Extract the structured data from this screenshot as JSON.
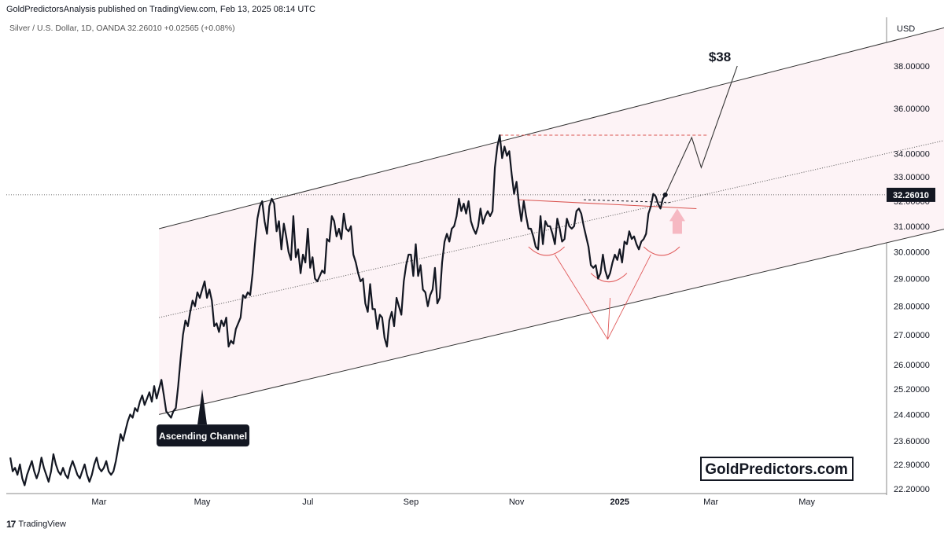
{
  "header": {
    "published": "GoldPredictorsAnalysis published on TradingView.com, Feb 13, 2025 08:14 UTC",
    "symbol": "Silver / U.S. Dollar, 1D, OANDA  32.26010  +0.02565 (+0.08%)"
  },
  "footer": {
    "brand": "TradingView",
    "brand_icon": "tradingview-logo-icon"
  },
  "chart_data": {
    "type": "line",
    "currency": "USD",
    "scale": "log",
    "ylim": [
      22.2,
      40.5
    ],
    "y_ticks": [
      "38.00000",
      "36.00000",
      "34.00000",
      "33.00000",
      "32.00000",
      "31.00000",
      "30.00000",
      "29.00000",
      "28.00000",
      "27.00000",
      "26.00000",
      "25.20000",
      "24.40000",
      "23.60000",
      "22.90000",
      "22.20000"
    ],
    "x_ticks": [
      "Mar",
      "May",
      "Jul",
      "Sep",
      "Nov",
      "2025",
      "Mar",
      "May"
    ],
    "last_price_label": "32.26010",
    "last_price": 32.2601,
    "series": [
      {
        "values": [
          [
            1,
            23.1
          ],
          [
            2,
            22.7
          ],
          [
            3,
            22.8
          ],
          [
            4,
            22.6
          ],
          [
            5,
            22.9
          ],
          [
            6,
            22.5
          ],
          [
            7,
            22.3
          ],
          [
            8,
            22.6
          ],
          [
            9,
            22.8
          ],
          [
            10,
            23.0
          ],
          [
            11,
            22.7
          ],
          [
            12,
            22.5
          ],
          [
            13,
            22.7
          ],
          [
            14,
            23.1
          ],
          [
            15,
            22.8
          ],
          [
            16,
            22.6
          ],
          [
            17,
            22.4
          ],
          [
            18,
            22.7
          ],
          [
            19,
            23.2
          ],
          [
            20,
            22.9
          ],
          [
            21,
            22.7
          ],
          [
            22,
            22.6
          ],
          [
            23,
            22.8
          ],
          [
            24,
            22.6
          ],
          [
            25,
            22.5
          ],
          [
            26,
            22.8
          ],
          [
            27,
            23.0
          ],
          [
            28,
            22.8
          ],
          [
            29,
            22.6
          ],
          [
            30,
            22.5
          ],
          [
            31,
            22.7
          ],
          [
            32,
            22.9
          ],
          [
            33,
            22.6
          ],
          [
            34,
            22.4
          ],
          [
            35,
            22.6
          ],
          [
            36,
            22.9
          ],
          [
            37,
            23.1
          ],
          [
            38,
            22.8
          ],
          [
            39,
            22.7
          ],
          [
            40,
            22.8
          ],
          [
            41,
            23.0
          ],
          [
            42,
            22.7
          ],
          [
            43,
            22.6
          ],
          [
            44,
            22.7
          ],
          [
            45,
            23.0
          ],
          [
            46,
            23.4
          ],
          [
            47,
            23.8
          ],
          [
            48,
            23.6
          ],
          [
            49,
            23.9
          ],
          [
            50,
            24.2
          ],
          [
            51,
            24.4
          ],
          [
            52,
            24.3
          ],
          [
            53,
            24.6
          ],
          [
            54,
            24.5
          ],
          [
            55,
            24.8
          ],
          [
            56,
            25.0
          ],
          [
            57,
            24.7
          ],
          [
            58,
            24.9
          ],
          [
            59,
            25.1
          ],
          [
            60,
            24.8
          ],
          [
            61,
            25.3
          ],
          [
            62,
            24.9
          ],
          [
            63,
            25.2
          ],
          [
            64,
            25.5
          ],
          [
            65,
            25.0
          ],
          [
            66,
            24.5
          ],
          [
            67,
            24.4
          ],
          [
            68,
            24.3
          ],
          [
            69,
            24.5
          ],
          [
            70,
            24.6
          ],
          [
            71,
            25.3
          ],
          [
            72,
            26.2
          ],
          [
            73,
            27.0
          ],
          [
            74,
            27.5
          ],
          [
            75,
            27.3
          ],
          [
            76,
            27.8
          ],
          [
            77,
            28.2
          ],
          [
            78,
            28.0
          ],
          [
            79,
            28.5
          ],
          [
            80,
            28.3
          ],
          [
            81,
            28.6
          ],
          [
            82,
            28.9
          ],
          [
            83,
            28.3
          ],
          [
            84,
            28.6
          ],
          [
            85,
            28.2
          ],
          [
            86,
            27.3
          ],
          [
            87,
            27.4
          ],
          [
            88,
            27.1
          ],
          [
            89,
            27.5
          ],
          [
            90,
            27.3
          ],
          [
            91,
            27.6
          ],
          [
            92,
            26.6
          ],
          [
            93,
            26.8
          ],
          [
            94,
            26.7
          ],
          [
            95,
            27.2
          ],
          [
            96,
            27.4
          ],
          [
            97,
            27.6
          ],
          [
            98,
            28.4
          ],
          [
            99,
            28.3
          ],
          [
            100,
            28.5
          ],
          [
            101,
            28.4
          ],
          [
            102,
            29.2
          ],
          [
            103,
            30.3
          ],
          [
            104,
            31.3
          ],
          [
            105,
            31.8
          ],
          [
            106,
            32.0
          ],
          [
            107,
            31.2
          ],
          [
            108,
            30.7
          ],
          [
            109,
            31.8
          ],
          [
            110,
            32.1
          ],
          [
            111,
            31.9
          ],
          [
            112,
            30.8
          ],
          [
            113,
            31.2
          ],
          [
            114,
            30.1
          ],
          [
            115,
            31.1
          ],
          [
            116,
            30.6
          ],
          [
            117,
            30.0
          ],
          [
            118,
            29.7
          ],
          [
            119,
            31.4
          ],
          [
            120,
            29.8
          ],
          [
            121,
            30.1
          ],
          [
            122,
            29.2
          ],
          [
            123,
            29.9
          ],
          [
            124,
            29.6
          ],
          [
            125,
            30.9
          ],
          [
            126,
            29.4
          ],
          [
            127,
            29.8
          ],
          [
            128,
            29.0
          ],
          [
            129,
            28.9
          ],
          [
            130,
            29.1
          ],
          [
            131,
            29.3
          ],
          [
            132,
            29.2
          ],
          [
            133,
            30.5
          ],
          [
            134,
            30.4
          ],
          [
            135,
            31.4
          ],
          [
            136,
            31.2
          ],
          [
            137,
            30.6
          ],
          [
            138,
            30.9
          ],
          [
            139,
            30.5
          ],
          [
            140,
            31.5
          ],
          [
            141,
            30.9
          ],
          [
            142,
            30.8
          ],
          [
            143,
            31.0
          ],
          [
            144,
            29.9
          ],
          [
            145,
            29.6
          ],
          [
            146,
            29.2
          ],
          [
            147,
            28.9
          ],
          [
            148,
            29.0
          ],
          [
            149,
            28.1
          ],
          [
            150,
            27.8
          ],
          [
            151,
            28.8
          ],
          [
            152,
            27.9
          ],
          [
            153,
            27.9
          ],
          [
            154,
            27.2
          ],
          [
            155,
            27.7
          ],
          [
            156,
            27.6
          ],
          [
            157,
            26.9
          ],
          [
            158,
            26.6
          ],
          [
            159,
            27.5
          ],
          [
            160,
            27.8
          ],
          [
            161,
            27.3
          ],
          [
            162,
            28.3
          ],
          [
            163,
            28.0
          ],
          [
            164,
            27.7
          ],
          [
            165,
            28.9
          ],
          [
            166,
            29.5
          ],
          [
            167,
            29.9
          ],
          [
            168,
            29.9
          ],
          [
            169,
            29.1
          ],
          [
            170,
            30.3
          ],
          [
            171,
            29.1
          ],
          [
            172,
            29.5
          ],
          [
            173,
            28.6
          ],
          [
            174,
            28.5
          ],
          [
            175,
            28.0
          ],
          [
            176,
            28.4
          ],
          [
            177,
            28.6
          ],
          [
            178,
            29.4
          ],
          [
            179,
            28.1
          ],
          [
            180,
            28.3
          ],
          [
            181,
            29.6
          ],
          [
            182,
            30.4
          ],
          [
            183,
            30.7
          ],
          [
            184,
            30.4
          ],
          [
            185,
            30.9
          ],
          [
            186,
            31.0
          ],
          [
            187,
            31.4
          ],
          [
            188,
            32.1
          ],
          [
            189,
            31.6
          ],
          [
            190,
            31.9
          ],
          [
            191,
            31.5
          ],
          [
            192,
            32.0
          ],
          [
            193,
            31.2
          ],
          [
            194,
            30.9
          ],
          [
            195,
            30.7
          ],
          [
            196,
            31.0
          ],
          [
            197,
            31.7
          ],
          [
            198,
            31.1
          ],
          [
            199,
            31.4
          ],
          [
            200,
            31.6
          ],
          [
            201,
            31.4
          ],
          [
            202,
            31.6
          ],
          [
            203,
            33.4
          ],
          [
            204,
            34.3
          ],
          [
            205,
            34.8
          ],
          [
            206,
            33.8
          ],
          [
            207,
            34.3
          ],
          [
            208,
            33.9
          ],
          [
            209,
            34.1
          ],
          [
            210,
            33.1
          ],
          [
            211,
            32.3
          ],
          [
            212,
            32.8
          ],
          [
            213,
            31.9
          ],
          [
            214,
            31.2
          ],
          [
            215,
            32.0
          ],
          [
            216,
            31.4
          ],
          [
            217,
            30.9
          ],
          [
            218,
            30.9
          ],
          [
            219,
            30.6
          ],
          [
            220,
            30.2
          ],
          [
            221,
            30.1
          ],
          [
            222,
            31.4
          ],
          [
            223,
            30.3
          ],
          [
            224,
            31.2
          ],
          [
            225,
            31.0
          ],
          [
            226,
            31.0
          ],
          [
            227,
            30.7
          ],
          [
            228,
            30.3
          ],
          [
            229,
            31.3
          ],
          [
            230,
            30.9
          ],
          [
            231,
            30.4
          ],
          [
            232,
            30.5
          ],
          [
            233,
            31.3
          ],
          [
            234,
            31.0
          ],
          [
            235,
            30.9
          ],
          [
            236,
            31.0
          ],
          [
            237,
            31.6
          ],
          [
            238,
            31.7
          ],
          [
            239,
            31.5
          ],
          [
            240,
            31.0
          ],
          [
            241,
            30.6
          ],
          [
            242,
            30.2
          ],
          [
            243,
            29.5
          ],
          [
            244,
            29.4
          ],
          [
            245,
            29.5
          ],
          [
            246,
            29.0
          ],
          [
            247,
            29.2
          ],
          [
            248,
            29.9
          ],
          [
            249,
            29.3
          ],
          [
            250,
            29.0
          ],
          [
            251,
            29.2
          ],
          [
            252,
            29.6
          ],
          [
            253,
            29.9
          ],
          [
            254,
            29.7
          ],
          [
            255,
            30.1
          ],
          [
            256,
            29.6
          ],
          [
            257,
            30.4
          ],
          [
            258,
            30.3
          ],
          [
            259,
            30.8
          ],
          [
            260,
            30.5
          ],
          [
            261,
            30.6
          ],
          [
            262,
            30.3
          ],
          [
            263,
            30.1
          ],
          [
            264,
            30.4
          ],
          [
            265,
            30.5
          ],
          [
            266,
            30.7
          ],
          [
            267,
            31.5
          ],
          [
            268,
            31.8
          ],
          [
            269,
            32.3
          ],
          [
            270,
            32.2
          ],
          [
            271,
            31.9
          ],
          [
            272,
            31.7
          ],
          [
            273,
            32.1
          ],
          [
            274,
            32.26
          ]
        ]
      }
    ],
    "projection": [
      [
        274,
        32.26
      ],
      [
        285,
        34.7
      ],
      [
        289,
        33.4
      ],
      [
        304,
        38.0
      ]
    ],
    "annotations": {
      "target_label": "$38",
      "channel_label": "Ascending Channel",
      "watermark": "GoldPredictors.com"
    },
    "channel": {
      "upper": [
        [
          63,
          30.9
        ],
        [
          400,
          40.2
        ]
      ],
      "middle": [
        [
          63,
          27.6
        ],
        [
          400,
          34.8
        ]
      ],
      "lower": [
        [
          63,
          24.4
        ],
        [
          400,
          31.1
        ]
      ]
    },
    "resistance_dashed": [
      205,
      292,
      34.8
    ],
    "neckline": [
      [
        213,
        32.06
      ],
      [
        287,
        31.7
      ]
    ],
    "support_dashed": [
      [
        240,
        32.06
      ],
      [
        276,
        31.95
      ]
    ]
  }
}
